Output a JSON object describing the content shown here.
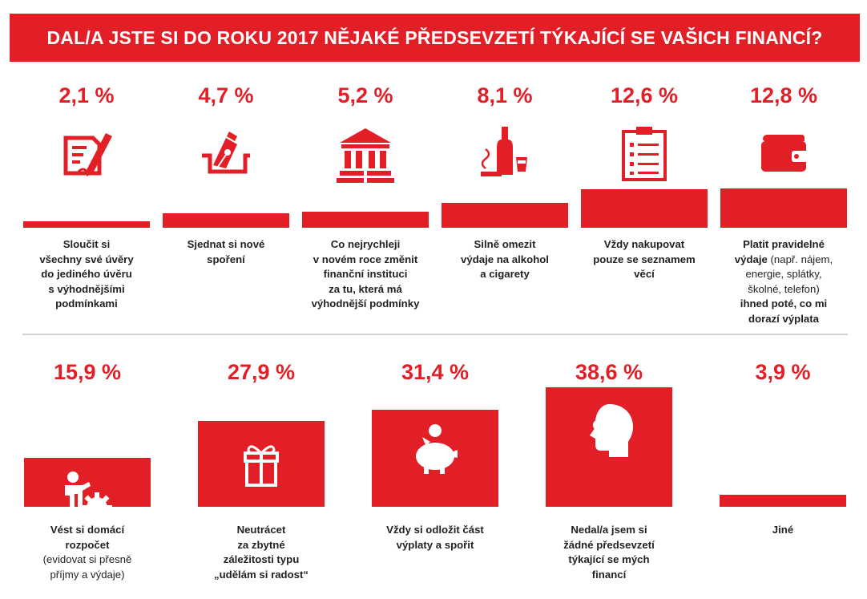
{
  "title": "DAL/A JSTE SI DO ROKU 2017 NĚJAKÉ PŘEDSEVZETÍ TÝKAJÍCÍ SE VAŠICH FINANCÍ?",
  "colors": {
    "accent": "#e21f26",
    "text": "#231f20",
    "divider": "#cfcfcf"
  },
  "chart_data": [
    {
      "type": "bar",
      "categories": [
        "Sloučit si všechny své úvěry do jediného úvěru s výhodnějšími podmínkami",
        "Sjednat si nové spoření",
        "Co nejrychleji v novém roce změnit finanční instituci za tu, která má výhodnější podmínky",
        "Silně omezit výdaje na alkohol a cigarety",
        "Vždy nakupovat pouze se seznamem věcí",
        "Platit pravidelné výdaje (např. nájem, energie, splátky, školné, telefon) ihned poté, co mi dorazí výplata"
      ],
      "values": [
        2.1,
        4.7,
        5.2,
        8.1,
        12.6,
        12.8
      ],
      "unit": "%"
    },
    {
      "type": "bar",
      "categories": [
        "Vést si domácí rozpočet (evidovat si přesně příjmy a výdaje)",
        "Neutrácet za zbytné záležitosti typu „udělám si radost“",
        "Vždy si odložit část výplaty a spořit",
        "Nedal/a jsem si žádné předsevzetí týkající se mých financí",
        "Jiné"
      ],
      "values": [
        15.9,
        27.9,
        31.4,
        38.6,
        3.9
      ],
      "unit": "%"
    }
  ],
  "row1": [
    {
      "pct": "2,1 %",
      "icon": "contract-pen-icon",
      "label": [
        {
          "t": "Sloučit si",
          "b": true
        },
        {
          "t": "všechny své úvěry",
          "b": true
        },
        {
          "t": "do jediného úvěru",
          "b": true
        },
        {
          "t": "s výhodnějšími",
          "b": true
        },
        {
          "t": "podmínkami",
          "b": true
        }
      ]
    },
    {
      "pct": "4,7 %",
      "icon": "signature-pen-icon",
      "label": [
        {
          "t": "Sjednat si nové",
          "b": true
        },
        {
          "t": "spoření",
          "b": true
        }
      ]
    },
    {
      "pct": "5,2 %",
      "icon": "bank-building-icon",
      "label": [
        {
          "t": "Co nejrychleji",
          "b": true
        },
        {
          "t": "v novém roce změnit",
          "b": true
        },
        {
          "t": "finanční instituci",
          "b": true
        },
        {
          "t": "za tu, která má",
          "b": true
        },
        {
          "t": "výhodnější podmínky",
          "b": true
        }
      ]
    },
    {
      "pct": "8,1 %",
      "icon": "alcohol-cigarette-icon",
      "label": [
        {
          "t": "Silně omezit",
          "b": true
        },
        {
          "t": "výdaje na alkohol",
          "b": true
        },
        {
          "t": "a cigarety",
          "b": true
        }
      ]
    },
    {
      "pct": "12,6 %",
      "icon": "clipboard-list-icon",
      "label": [
        {
          "t": "Vždy nakupovat",
          "b": true
        },
        {
          "t": "pouze se seznamem",
          "b": true
        },
        {
          "t": "věcí",
          "b": true
        }
      ]
    },
    {
      "pct": "12,8 %",
      "icon": "wallet-icon",
      "label": [
        {
          "t": "Platit pravidelné",
          "b": true
        },
        [
          {
            "t": "výdaje",
            "b": true
          },
          {
            "t": " (např. nájem,",
            "b": false
          }
        ],
        {
          "t": "energie, splátky,",
          "b": false
        },
        {
          "t": "školné, telefon)",
          "b": false
        },
        {
          "t": "ihned poté, co mi",
          "b": true
        },
        {
          "t": "dorazí výplata",
          "b": true
        }
      ]
    }
  ],
  "row2": [
    {
      "pct": "15,9 %",
      "icon": "person-gear-icon",
      "label": [
        {
          "t": "Vést si domácí",
          "b": true
        },
        {
          "t": "rozpočet",
          "b": true
        },
        {
          "t": "(evidovat si přesně",
          "b": false
        },
        {
          "t": "příjmy a výdaje)",
          "b": false
        }
      ]
    },
    {
      "pct": "27,9 %",
      "icon": "gift-icon",
      "label": [
        {
          "t": "Neutrácet",
          "b": true
        },
        {
          "t": "za zbytné",
          "b": true
        },
        {
          "t": "záležitosti typu",
          "b": true
        },
        {
          "t": "„udělám si radost“",
          "b": true
        }
      ]
    },
    {
      "pct": "31,4 %",
      "icon": "piggy-bank-icon",
      "label": [
        {
          "t": "Vždy si odložit část",
          "b": true
        },
        {
          "t": "výplaty a spořit",
          "b": true
        }
      ]
    },
    {
      "pct": "38,6 %",
      "icon": "head-cloud-icon",
      "label": [
        {
          "t": "Nedal/a jsem si",
          "b": true
        },
        {
          "t": "žádné předsevzetí",
          "b": true
        },
        {
          "t": "týkající se mých",
          "b": true
        },
        {
          "t": "financí",
          "b": true
        }
      ]
    },
    {
      "pct": "3,9 %",
      "icon": "ellipsis-icon",
      "label": [
        {
          "t": "Jiné",
          "b": true
        }
      ]
    }
  ]
}
